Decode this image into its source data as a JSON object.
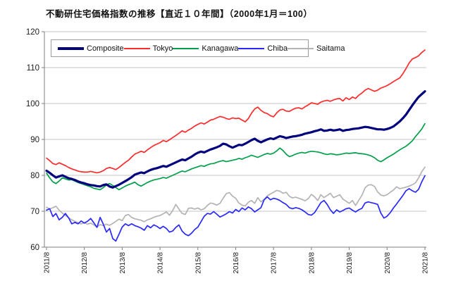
{
  "title": "不動研住宅価格指数の推移【直近１０年間】（2000年1月＝100）",
  "colors": {
    "composite": "#00007d",
    "tokyo": "#ff2a2a",
    "kanagawa": "#00a04a",
    "chiba": "#2929ff",
    "saitama": "#b3b3b3",
    "gridline": "#c6c6c6",
    "axis": "#7f7f7f",
    "tick_text": "#1a1a1a"
  },
  "chart_data": {
    "type": "line",
    "title": "不動研住宅価格指数の推移【直近１０年間】（2000年1月＝100）",
    "x_start": "2011/8",
    "x_end": "2021/8",
    "x_frequency": "monthly",
    "x_tick_labels": [
      "2011/8",
      "2012/8",
      "2013/8",
      "2014/8",
      "2015/8",
      "2016/8",
      "2017/8",
      "2018/8",
      "2019/8",
      "2020/8",
      "2021/8"
    ],
    "y_tick_labels": [
      "60",
      "70",
      "80",
      "90",
      "100",
      "110",
      "120"
    ],
    "ylim": [
      60,
      120
    ],
    "grid": "horizontal",
    "legend_position": "top-left-inside",
    "series": [
      {
        "name": "Composite",
        "color": "#00007d",
        "width": 3.2,
        "values": [
          81.3,
          80.7,
          80.0,
          79.4,
          79.7,
          80.0,
          79.6,
          79.2,
          79.0,
          78.7,
          78.3,
          78.0,
          77.8,
          77.5,
          77.3,
          77.2,
          77.0,
          76.9,
          77.3,
          77.5,
          76.9,
          76.6,
          77.0,
          77.4,
          77.9,
          78.4,
          78.9,
          79.5,
          80.2,
          80.5,
          80.8,
          80.6,
          81.1,
          81.5,
          81.8,
          82.0,
          82.3,
          82.6,
          82.4,
          82.8,
          83.2,
          83.6,
          84.0,
          84.4,
          84.2,
          84.7,
          85.2,
          85.8,
          86.3,
          86.6,
          86.4,
          86.8,
          87.2,
          87.5,
          87.8,
          88.2,
          88.8,
          88.6,
          88.1,
          87.7,
          88.1,
          88.5,
          88.4,
          88.8,
          89.3,
          89.8,
          90.2,
          89.6,
          89.2,
          89.6,
          90.0,
          90.3,
          90.1,
          90.5,
          90.9,
          90.7,
          90.4,
          90.6,
          90.8,
          90.9,
          91.1,
          91.3,
          91.6,
          91.8,
          92.0,
          92.3,
          92.5,
          92.8,
          92.4,
          92.5,
          92.7,
          92.5,
          92.6,
          92.8,
          92.4,
          92.6,
          92.7,
          92.9,
          93.0,
          93.1,
          93.3,
          93.5,
          93.4,
          93.2,
          93.0,
          92.8,
          92.8,
          92.7,
          92.9,
          93.2,
          93.6,
          94.3,
          95.0,
          95.9,
          96.9,
          98.2,
          99.5,
          100.7,
          101.8,
          102.6,
          103.4
        ]
      },
      {
        "name": "Tokyo",
        "color": "#ff2a2a",
        "width": 1.7,
        "values": [
          84.8,
          84.1,
          83.3,
          83.0,
          83.5,
          83.1,
          82.7,
          82.2,
          81.8,
          81.5,
          81.2,
          81.0,
          80.9,
          80.9,
          81.1,
          80.9,
          80.7,
          80.9,
          81.3,
          81.9,
          82.2,
          81.9,
          81.6,
          82.2,
          82.9,
          83.6,
          84.2,
          85.1,
          85.9,
          86.3,
          86.7,
          86.4,
          87.1,
          87.7,
          88.3,
          88.7,
          89.1,
          89.7,
          89.4,
          89.9,
          90.5,
          91.1,
          91.7,
          92.4,
          92.0,
          92.6,
          93.1,
          93.7,
          94.2,
          94.6,
          94.3,
          94.8,
          95.4,
          95.6,
          96.0,
          96.4,
          96.2,
          95.8,
          95.6,
          96.0,
          95.8,
          95.9,
          95.4,
          94.9,
          95.8,
          97.3,
          98.5,
          99.0,
          98.1,
          97.5,
          97.2,
          96.6,
          96.3,
          97.4,
          98.2,
          98.4,
          97.9,
          97.8,
          98.3,
          98.7,
          98.8,
          98.5,
          99.1,
          99.6,
          100.2,
          100.0,
          99.8,
          100.4,
          100.7,
          100.9,
          100.6,
          101.0,
          101.3,
          101.4,
          100.7,
          101.6,
          101.1,
          101.8,
          101.4,
          102.3,
          102.9,
          103.7,
          104.2,
          103.8,
          103.4,
          103.7,
          104.3,
          104.6,
          105.0,
          105.5,
          106.1,
          106.6,
          107.1,
          108.3,
          109.7,
          111.3,
          112.4,
          112.8,
          113.3,
          114.2,
          114.9
        ]
      },
      {
        "name": "Kanagawa",
        "color": "#00a04a",
        "width": 1.7,
        "values": [
          80.6,
          79.3,
          78.2,
          77.7,
          78.4,
          79.3,
          79.0,
          78.7,
          78.8,
          78.4,
          78.0,
          77.7,
          77.4,
          77.1,
          76.8,
          76.4,
          76.2,
          76.0,
          76.6,
          77.3,
          77.7,
          77.2,
          76.6,
          76.0,
          76.5,
          77.0,
          77.4,
          77.7,
          78.1,
          77.4,
          77.0,
          77.5,
          78.0,
          78.4,
          78.7,
          78.9,
          79.1,
          79.4,
          79.2,
          79.6,
          80.0,
          80.4,
          80.8,
          81.2,
          81.0,
          81.4,
          81.8,
          82.1,
          82.4,
          82.7,
          82.5,
          82.9,
          83.2,
          83.3,
          83.6,
          83.9,
          84.1,
          83.8,
          84.0,
          84.2,
          84.4,
          84.7,
          84.5,
          84.9,
          85.2,
          85.6,
          85.3,
          85.0,
          85.4,
          85.8,
          86.1,
          85.9,
          86.2,
          86.8,
          87.6,
          86.9,
          85.9,
          85.2,
          85.5,
          85.9,
          86.2,
          86.4,
          86.2,
          86.5,
          86.7,
          86.6,
          86.5,
          86.3,
          86.0,
          85.8,
          86.0,
          85.9,
          85.7,
          85.8,
          86.0,
          86.2,
          86.1,
          86.2,
          86.3,
          86.1,
          86.0,
          85.9,
          85.7,
          85.4,
          84.9,
          84.2,
          83.8,
          84.3,
          84.9,
          85.4,
          85.9,
          86.5,
          87.1,
          87.6,
          88.1,
          88.8,
          89.6,
          90.8,
          91.8,
          92.9,
          94.4
        ]
      },
      {
        "name": "Chiba",
        "color": "#2929ff",
        "width": 1.7,
        "values": [
          70.3,
          70.7,
          68.5,
          69.4,
          67.6,
          68.3,
          69.4,
          68.2,
          66.5,
          66.9,
          66.5,
          67.3,
          66.7,
          67.2,
          68.0,
          66.8,
          65.5,
          68.3,
          66.4,
          64.2,
          65.2,
          62.4,
          61.7,
          63.6,
          65.6,
          66.5,
          66.0,
          66.5,
          66.0,
          65.7,
          65.3,
          64.7,
          66.0,
          65.4,
          66.2,
          65.8,
          65.2,
          65.8,
          65.2,
          64.2,
          64.5,
          65.5,
          66.2,
          64.5,
          63.6,
          63.2,
          63.9,
          64.9,
          65.6,
          67.1,
          68.6,
          69.4,
          69.2,
          69.9,
          69.2,
          68.4,
          68.8,
          69.3,
          69.9,
          69.5,
          70.5,
          69.9,
          70.9,
          70.4,
          71.2,
          70.7,
          69.8,
          70.4,
          71.0,
          73.2,
          74.0,
          73.2,
          73.6,
          73.4,
          73.0,
          72.4,
          71.9,
          71.0,
          70.7,
          71.0,
          70.8,
          70.4,
          69.8,
          69.1,
          68.9,
          69.6,
          71.0,
          72.4,
          73.0,
          71.9,
          70.4,
          69.4,
          70.4,
          69.8,
          70.2,
          70.7,
          70.9,
          70.3,
          69.8,
          70.4,
          70.8,
          72.3,
          72.6,
          72.4,
          72.2,
          71.9,
          69.5,
          68.1,
          68.6,
          69.6,
          70.9,
          72.0,
          73.2,
          74.4,
          75.7,
          76.3,
          75.7,
          75.3,
          76.1,
          78.2,
          79.9
        ]
      },
      {
        "name": "Saitama",
        "color": "#b3b3b3",
        "width": 1.7,
        "values": [
          71.1,
          70.6,
          71.0,
          71.4,
          70.3,
          69.5,
          68.8,
          68.2,
          67.6,
          67.2,
          66.8,
          66.5,
          66.8,
          66.4,
          66.7,
          66.2,
          65.6,
          66.3,
          66.0,
          66.4,
          66.1,
          66.6,
          67.2,
          67.8,
          67.4,
          68.8,
          69.1,
          68.3,
          67.9,
          67.7,
          67.5,
          67.1,
          67.6,
          67.9,
          68.3,
          68.6,
          68.8,
          69.3,
          69.8,
          68.9,
          70.2,
          71.9,
          70.6,
          69.4,
          69.1,
          70.8,
          70.9,
          70.6,
          70.9,
          70.4,
          70.7,
          71.6,
          72.3,
          72.1,
          71.7,
          72.2,
          73.6,
          74.9,
          75.2,
          74.2,
          73.6,
          72.3,
          71.7,
          71.5,
          72.5,
          73.0,
          72.2,
          73.8,
          72.6,
          73.3,
          74.3,
          74.8,
          75.3,
          75.8,
          75.6,
          75.0,
          75.3,
          74.2,
          73.7,
          73.9,
          73.6,
          73.3,
          72.9,
          73.5,
          74.7,
          74.0,
          73.0,
          74.6,
          73.8,
          74.4,
          75.0,
          73.8,
          74.2,
          74.6,
          73.4,
          72.8,
          72.2,
          73.0,
          71.6,
          73.0,
          74.4,
          76.5,
          77.3,
          77.4,
          76.9,
          75.4,
          74.5,
          74.3,
          74.6,
          75.3,
          75.9,
          76.8,
          76.3,
          76.5,
          76.7,
          77.0,
          77.4,
          77.9,
          79.3,
          81.0,
          82.3
        ]
      }
    ]
  }
}
